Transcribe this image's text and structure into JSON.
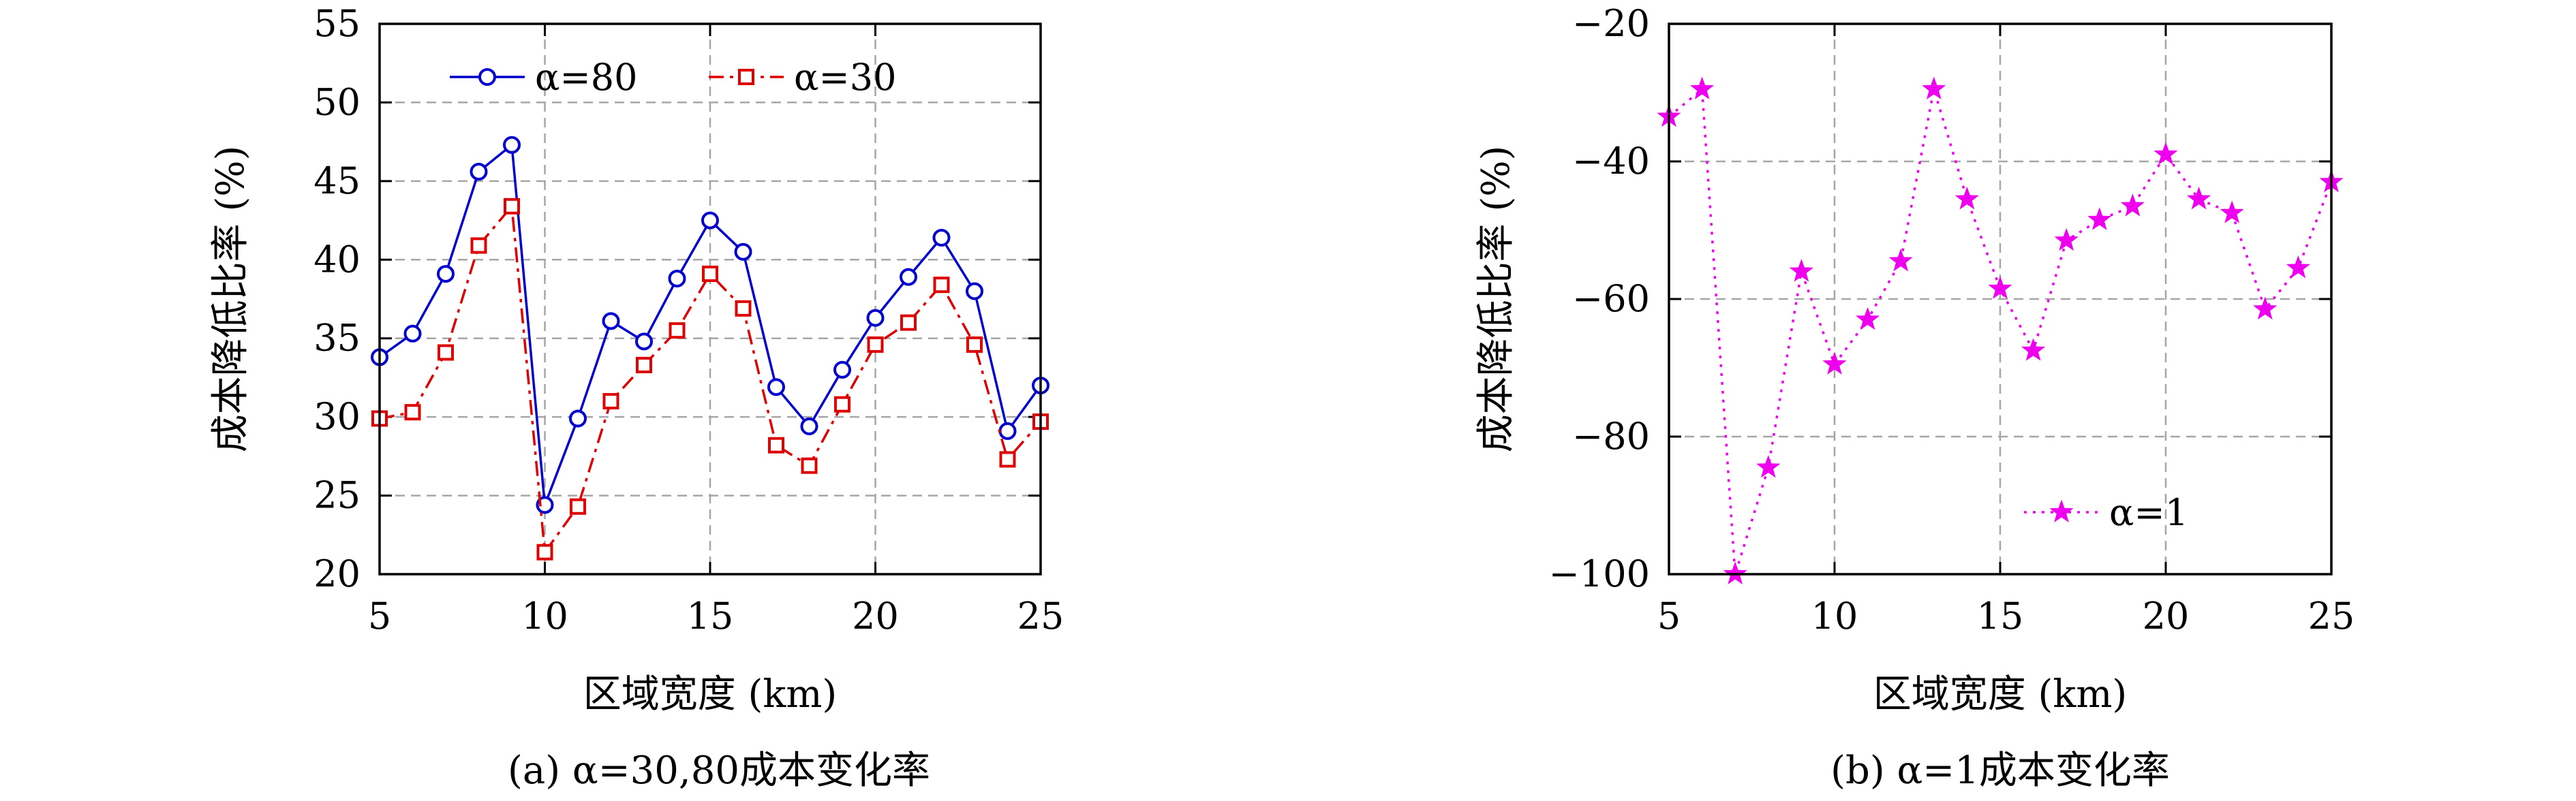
{
  "chart_data": [
    {
      "type": "line",
      "caption": "(a) α=30,80成本变化率",
      "xlabel": "区域宽度 (km)",
      "ylabel": "成本降低比率 (%)",
      "xlim": [
        5,
        25
      ],
      "ylim": [
        20,
        55
      ],
      "xticks": [
        5,
        10,
        15,
        20,
        25
      ],
      "yticks": [
        20,
        25,
        30,
        35,
        40,
        45,
        50,
        55
      ],
      "grid": true,
      "legend_position": "top",
      "x": [
        5,
        6,
        7,
        8,
        9,
        10,
        11,
        12,
        13,
        14,
        15,
        16,
        17,
        18,
        19,
        20,
        21,
        22,
        23,
        24,
        25
      ],
      "series": [
        {
          "name": "α=80",
          "color": "#0000cc",
          "marker": "circle",
          "line_style": "solid",
          "values": [
            33.8,
            35.3,
            39.1,
            45.6,
            47.3,
            24.4,
            29.9,
            36.1,
            34.8,
            38.8,
            42.5,
            40.5,
            31.9,
            29.4,
            33.0,
            36.3,
            38.9,
            41.4,
            38.0,
            29.1,
            32.0
          ]
        },
        {
          "name": "α=30",
          "color": "#dd0000",
          "marker": "square",
          "line_style": "dash-dot",
          "values": [
            29.9,
            30.3,
            34.1,
            40.9,
            43.4,
            21.4,
            24.3,
            31.0,
            33.3,
            35.5,
            39.1,
            36.9,
            28.2,
            26.9,
            30.8,
            34.6,
            36.0,
            38.4,
            34.6,
            27.3,
            29.7
          ]
        }
      ]
    },
    {
      "type": "line",
      "caption": "(b) α=1成本变化率",
      "xlabel": "区域宽度 (km)",
      "ylabel": "成本降低比率 (%)",
      "xlim": [
        5,
        25
      ],
      "ylim": [
        -100,
        -20
      ],
      "xticks": [
        5,
        10,
        15,
        20,
        25
      ],
      "yticks": [
        -100,
        -80,
        -60,
        -40,
        -20
      ],
      "ytick_labels": [
        "−100",
        "−80",
        "−60",
        "−40",
        "−20"
      ],
      "grid": true,
      "legend_position": "bottom-right",
      "x": [
        5,
        6,
        7,
        8,
        9,
        10,
        11,
        12,
        13,
        14,
        15,
        16,
        17,
        18,
        19,
        20,
        21,
        22,
        23,
        24,
        25
      ],
      "series": [
        {
          "name": "α=1",
          "color": "#ee00ee",
          "marker": "star",
          "line_style": "dotted",
          "values": [
            -33.5,
            -29.5,
            -100.0,
            -84.5,
            -56.0,
            -69.5,
            -63.0,
            -54.5,
            -29.5,
            -45.5,
            -58.5,
            -67.5,
            -51.5,
            -48.5,
            -46.5,
            -39.0,
            -45.5,
            -47.5,
            -61.5,
            -55.5,
            -43.0
          ]
        }
      ]
    }
  ]
}
